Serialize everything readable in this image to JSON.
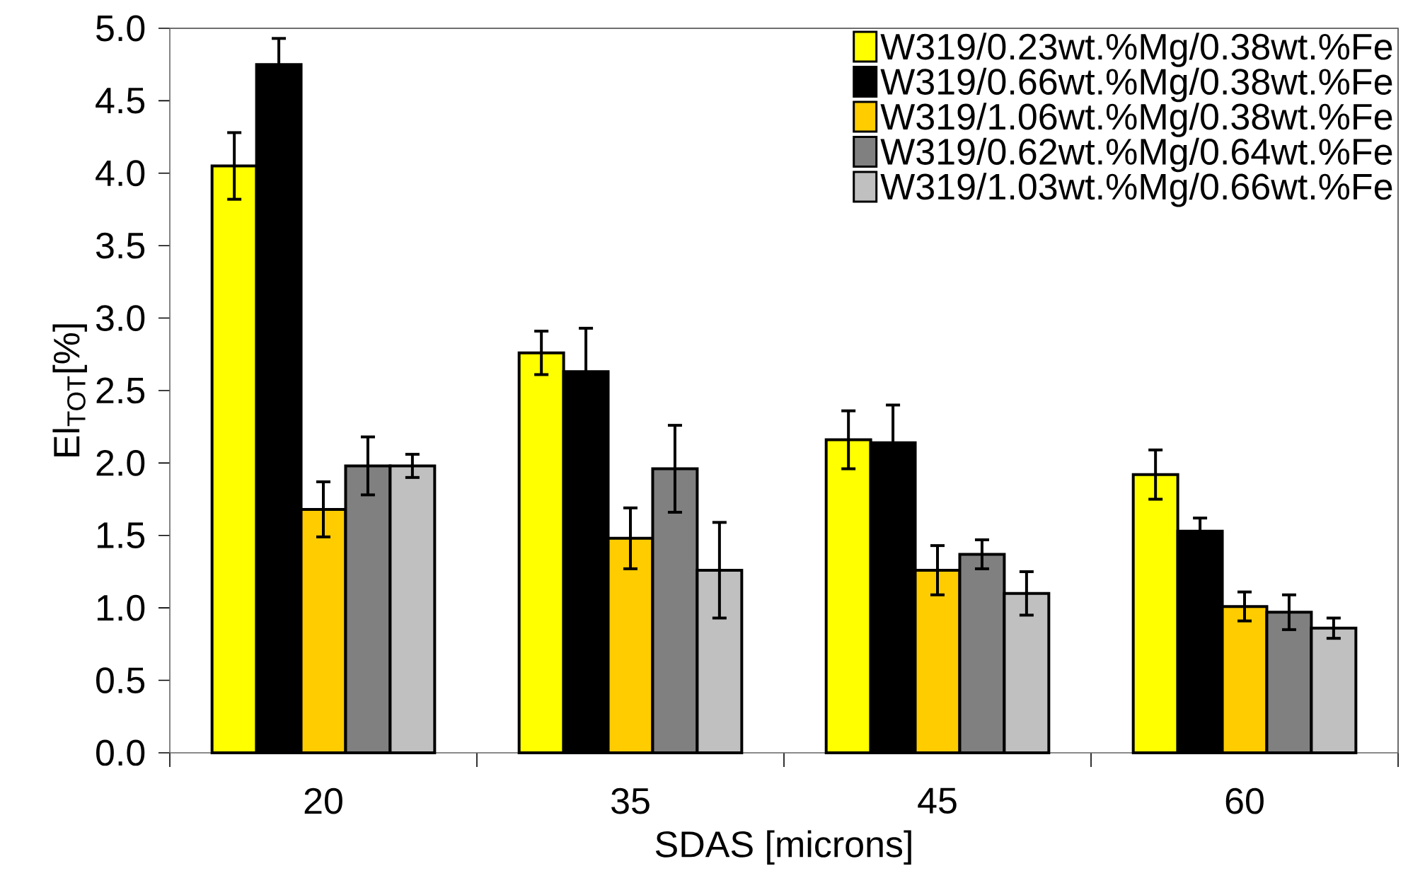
{
  "chart_data": {
    "type": "bar",
    "xlabel": "SDAS [microns]",
    "ylabel": "El$_{TOT}$[%]",
    "categories": [
      "20",
      "35",
      "45",
      "60"
    ],
    "series": [
      {
        "name": "W319/0.23wt.%Mg/0.38wt.%Fe",
        "color": "#ffff00",
        "values": [
          4.05,
          2.76,
          2.16,
          1.92
        ],
        "errors": [
          0.23,
          0.15,
          0.2,
          0.17
        ]
      },
      {
        "name": "W319/0.66wt.%Mg/0.38wt.%Fe",
        "color": "#000000",
        "values": [
          4.75,
          2.63,
          2.14,
          1.53
        ],
        "errors": [
          0.18,
          0.3,
          0.26,
          0.09
        ]
      },
      {
        "name": "W319/1.06wt.%Mg/0.38wt.%Fe",
        "color": "#ffcc00",
        "values": [
          1.68,
          1.48,
          1.26,
          1.01
        ],
        "errors": [
          0.19,
          0.21,
          0.17,
          0.1
        ]
      },
      {
        "name": "W319/0.62wt.%Mg/0.64wt.%Fe",
        "color": "#808080",
        "values": [
          1.98,
          1.96,
          1.37,
          0.97
        ],
        "errors": [
          0.2,
          0.3,
          0.1,
          0.12
        ]
      },
      {
        "name": "W319/1.03wt.%Mg/0.66wt.%Fe",
        "color": "#c0c0c0",
        "values": [
          1.98,
          1.26,
          1.1,
          0.86
        ],
        "errors": [
          0.08,
          0.33,
          0.15,
          0.07
        ]
      }
    ],
    "ylim": [
      0,
      5
    ],
    "yticks": [
      {
        "value": 0,
        "label": "0.0"
      },
      {
        "value": 0.5,
        "label": "0.5"
      },
      {
        "value": 1,
        "label": "1.0"
      },
      {
        "value": 1.5,
        "label": "1.5"
      },
      {
        "value": 2,
        "label": "2.0"
      },
      {
        "value": 2.5,
        "label": "2.5"
      },
      {
        "value": 3,
        "label": "3.0"
      },
      {
        "value": 3.5,
        "label": "3.5"
      },
      {
        "value": 4,
        "label": "4.0"
      },
      {
        "value": 4.5,
        "label": "4.5"
      },
      {
        "value": 5,
        "label": "5.0"
      }
    ],
    "legend": "top right",
    "grid": false
  }
}
